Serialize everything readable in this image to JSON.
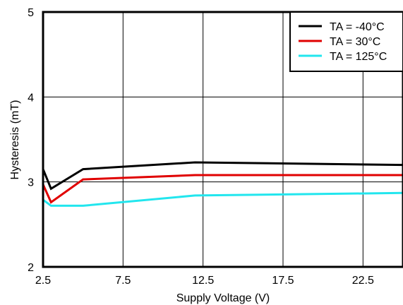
{
  "chart_data": {
    "type": "line",
    "xlabel": "Supply Voltage (V)",
    "ylabel": "Hysteresis (mT)",
    "xlim": [
      2.5,
      25
    ],
    "ylim": [
      2,
      5
    ],
    "x_ticks": [
      2.5,
      7.5,
      12.5,
      17.5,
      22.5
    ],
    "x_tick_labels": [
      "2.5",
      "7.5",
      "12.5",
      "17.5",
      "22.5"
    ],
    "y_ticks": [
      2,
      3,
      4,
      5
    ],
    "y_tick_labels": [
      "2",
      "3",
      "4",
      "5"
    ],
    "grid": true,
    "legend_position": "top-right",
    "series": [
      {
        "name": "TA = -40°C",
        "color": "#000000",
        "points": [
          [
            2.5,
            3.15
          ],
          [
            3.0,
            2.92
          ],
          [
            5.0,
            3.15
          ],
          [
            12.0,
            3.23
          ],
          [
            25.0,
            3.2
          ]
        ]
      },
      {
        "name": "TA = 30°C",
        "color": "#e00000",
        "points": [
          [
            2.5,
            2.97
          ],
          [
            3.0,
            2.76
          ],
          [
            5.0,
            3.03
          ],
          [
            12.0,
            3.08
          ],
          [
            25.0,
            3.08
          ]
        ]
      },
      {
        "name": "TA = 125°C",
        "color": "#22e6ee",
        "points": [
          [
            2.5,
            2.79
          ],
          [
            3.0,
            2.72
          ],
          [
            5.0,
            2.72
          ],
          [
            12.0,
            2.84
          ],
          [
            25.0,
            2.87
          ]
        ]
      }
    ]
  }
}
